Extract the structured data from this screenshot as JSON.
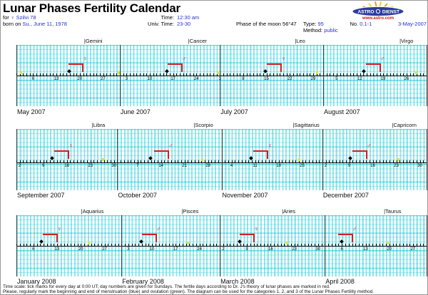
{
  "title": "Lunar Phases Fertility Calendar",
  "header": {
    "for_label": "for",
    "name": "♀ Szilvi 78",
    "born_label": "born on",
    "birth_date": "Su., June 11, 1978",
    "time_label": "Time:",
    "time_value": "12:30 am",
    "univ_time_label": "Univ. Time:",
    "univ_time_value": "23-30",
    "moon_phase": "Phase of the moon 56°47",
    "type_label": "Type:",
    "type_value": "95",
    "no_label": "No.",
    "no_value": "0.1-1",
    "date": "3-May-2007",
    "method_label": "Method:",
    "method_value": "public",
    "logo": {
      "word1": "ASTRO",
      "word2": "DIENST",
      "url": "www.astro.com"
    }
  },
  "footer": {
    "line1": "Time scale: tick marks for every day at 0:00 UT; day numbers are given for Sundays. The fertile days according to Dr. J's theory of lunar phases are marked in red.",
    "line2": "Please, regularly mark the beginning and end of menstruation (blue) and ovulation (green). The diagram can be used for the categories 1, 2, and 3 of the Lunar Phases Fertility method."
  },
  "colors": {
    "link_blue": "#2433cc",
    "marker_red": "#cf1f1f",
    "grid_cyan": "#55cfdd",
    "yellow_dot": "#dfe431",
    "logo_blue": "#2c3d9e",
    "logo_ray_orange": "#f59b1a",
    "logo_ray_yellow": "#fcd116"
  },
  "chart_data": {
    "type": "timeline-calendar",
    "tick_unit": "day at 0:00 UT",
    "numbered_days": "Sundays",
    "rows": [
      {
        "months": [
          {
            "name": "May 2007",
            "days": 31,
            "sundays": [
              6,
              13,
              20,
              27
            ],
            "zodiac_label": "|Gemini",
            "zodiac_day": 21.3,
            "phase_day": 20.9,
            "symbol": "♀",
            "diamond_day": 16.8,
            "dot_days": [
              2.3,
              31.6
            ]
          },
          {
            "name": "June 2007",
            "days": 30,
            "sundays": [
              3,
              10,
              17,
              24
            ],
            "zodiac_label": "|Cancer",
            "zodiac_day": 21.5,
            "phase_day": 19.6,
            "symbol": "♂",
            "diamond_day": 15.1,
            "dot_days": [
              30.5
            ]
          },
          {
            "name": "July 2007",
            "days": 31,
            "sundays": [
              1,
              8,
              15,
              22,
              29
            ],
            "zodiac_label": "|Leo",
            "zodiac_day": 23.5,
            "phase_day": 19.4,
            "symbol": "♀",
            "diamond_day": 14.7,
            "dot_days": [
              30.1
            ]
          },
          {
            "name": "August 2007",
            "days": 31,
            "sundays": [
              5,
              12,
              19,
              26
            ],
            "zodiac_label": "|Virgo",
            "zodiac_day": 23.9,
            "phase_day": 18.0,
            "symbol": "♂",
            "diamond_day": 13.2,
            "dot_days": [
              28.8
            ]
          }
        ]
      },
      {
        "months": [
          {
            "name": "September 2007",
            "days": 30,
            "sundays": [
              2,
              9,
              16,
              23,
              30
            ],
            "zodiac_label": "|Libra",
            "zodiac_day": 23.4,
            "phase_day": 16.5,
            "symbol": "♀",
            "diamond_day": 11.5,
            "dot_days": [
              26.7
            ]
          },
          {
            "name": "October 2007",
            "days": 31,
            "sundays": [
              7,
              14,
              21,
              28
            ],
            "zodiac_label": "|Scorpio",
            "zodiac_day": 23.7,
            "phase_day": 16.2,
            "symbol": "♂",
            "diamond_day": 10.9,
            "dot_days": [
              26.2
            ]
          },
          {
            "name": "November 2007",
            "days": 30,
            "sundays": [
              4,
              11,
              18,
              25
            ],
            "zodiac_label": "|Sagittarius",
            "zodiac_day": 22.2,
            "phase_day": 14.7,
            "symbol": "♀",
            "diamond_day": 9.7,
            "dot_days": [
              24.1
            ]
          },
          {
            "name": "December 2007",
            "days": 31,
            "sundays": [
              2,
              9,
              16,
              23,
              30
            ],
            "zodiac_label": "|Capricorn",
            "zodiac_day": 21.7,
            "phase_day": 14.2,
            "symbol": "♂",
            "diamond_day": 9.3,
            "dot_days": [
              23.7
            ]
          }
        ]
      },
      {
        "months": [
          {
            "name": "January 2008",
            "days": 31,
            "sundays": [
              6,
              13,
              20,
              27
            ],
            "zodiac_label": "|Aquarius",
            "zodiac_day": 20.1,
            "phase_day": 13.0,
            "symbol": "♀",
            "diamond_day": 8.4,
            "dot_days": [
              22.3
            ]
          },
          {
            "name": "February 2008",
            "days": 29,
            "sundays": [
              3,
              10,
              17,
              24
            ],
            "zodiac_label": "|Pisces",
            "zodiac_day": 18.7,
            "phase_day": 11.2,
            "symbol": "♂",
            "diamond_day": 6.8,
            "dot_days": [
              20.5
            ]
          },
          {
            "name": "March 2008",
            "days": 31,
            "sundays": [
              2,
              9,
              16,
              23,
              30
            ],
            "zodiac_label": "|Aries",
            "zodiac_day": 19.3,
            "phase_day": 11.1,
            "symbol": "♀",
            "diamond_day": 6.9,
            "dot_days": [
              20.8
            ]
          },
          {
            "name": "April 2008",
            "days": 30,
            "sundays": [
              6,
              13,
              20,
              27
            ],
            "zodiac_label": "|Taurus",
            "zodiac_day": 18.4,
            "phase_day": 9.0,
            "symbol": "♂",
            "diamond_day": 6.0,
            "dot_days": [
              19.6
            ]
          }
        ]
      }
    ]
  }
}
